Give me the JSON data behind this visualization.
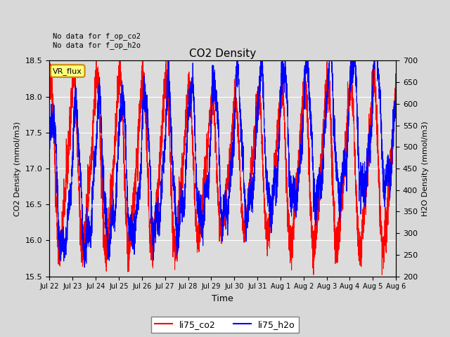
{
  "title": "CO2 Density",
  "xlabel": "Time",
  "ylabel_left": "CO2 Density (mmol/m3)",
  "ylabel_right": "H2O Density (mmol/m3)",
  "ylim_left": [
    15.5,
    18.5
  ],
  "ylim_right": [
    200,
    700
  ],
  "annotation_text": "No data for f_op_co2\nNo data for f_op_h2o",
  "legend_label_co2": "li75_co2",
  "legend_label_h2o": "li75_h2o",
  "vr_flux_label": "VR_flux",
  "color_co2": "#ff0000",
  "color_h2o": "#0000ff",
  "background_color": "#d8d8d8",
  "plot_background": "#dcdcdc",
  "n_days": 15,
  "points_per_day": 288,
  "seed": 42,
  "tick_labels": [
    "Jul 22",
    "Jul 23",
    "Jul 24",
    "Jul 25",
    "Jul 26",
    "Jul 27",
    "Jul 28",
    "Jul 29",
    "Jul 30",
    "Jul 31",
    "Aug 1",
    "Aug 2",
    "Aug 3",
    "Aug 4",
    "Aug 5",
    "Aug 6"
  ],
  "yticks_left": [
    15.5,
    16.0,
    16.5,
    17.0,
    17.5,
    18.0,
    18.5
  ],
  "yticks_right": [
    200,
    250,
    300,
    350,
    400,
    450,
    500,
    550,
    600,
    650,
    700
  ]
}
